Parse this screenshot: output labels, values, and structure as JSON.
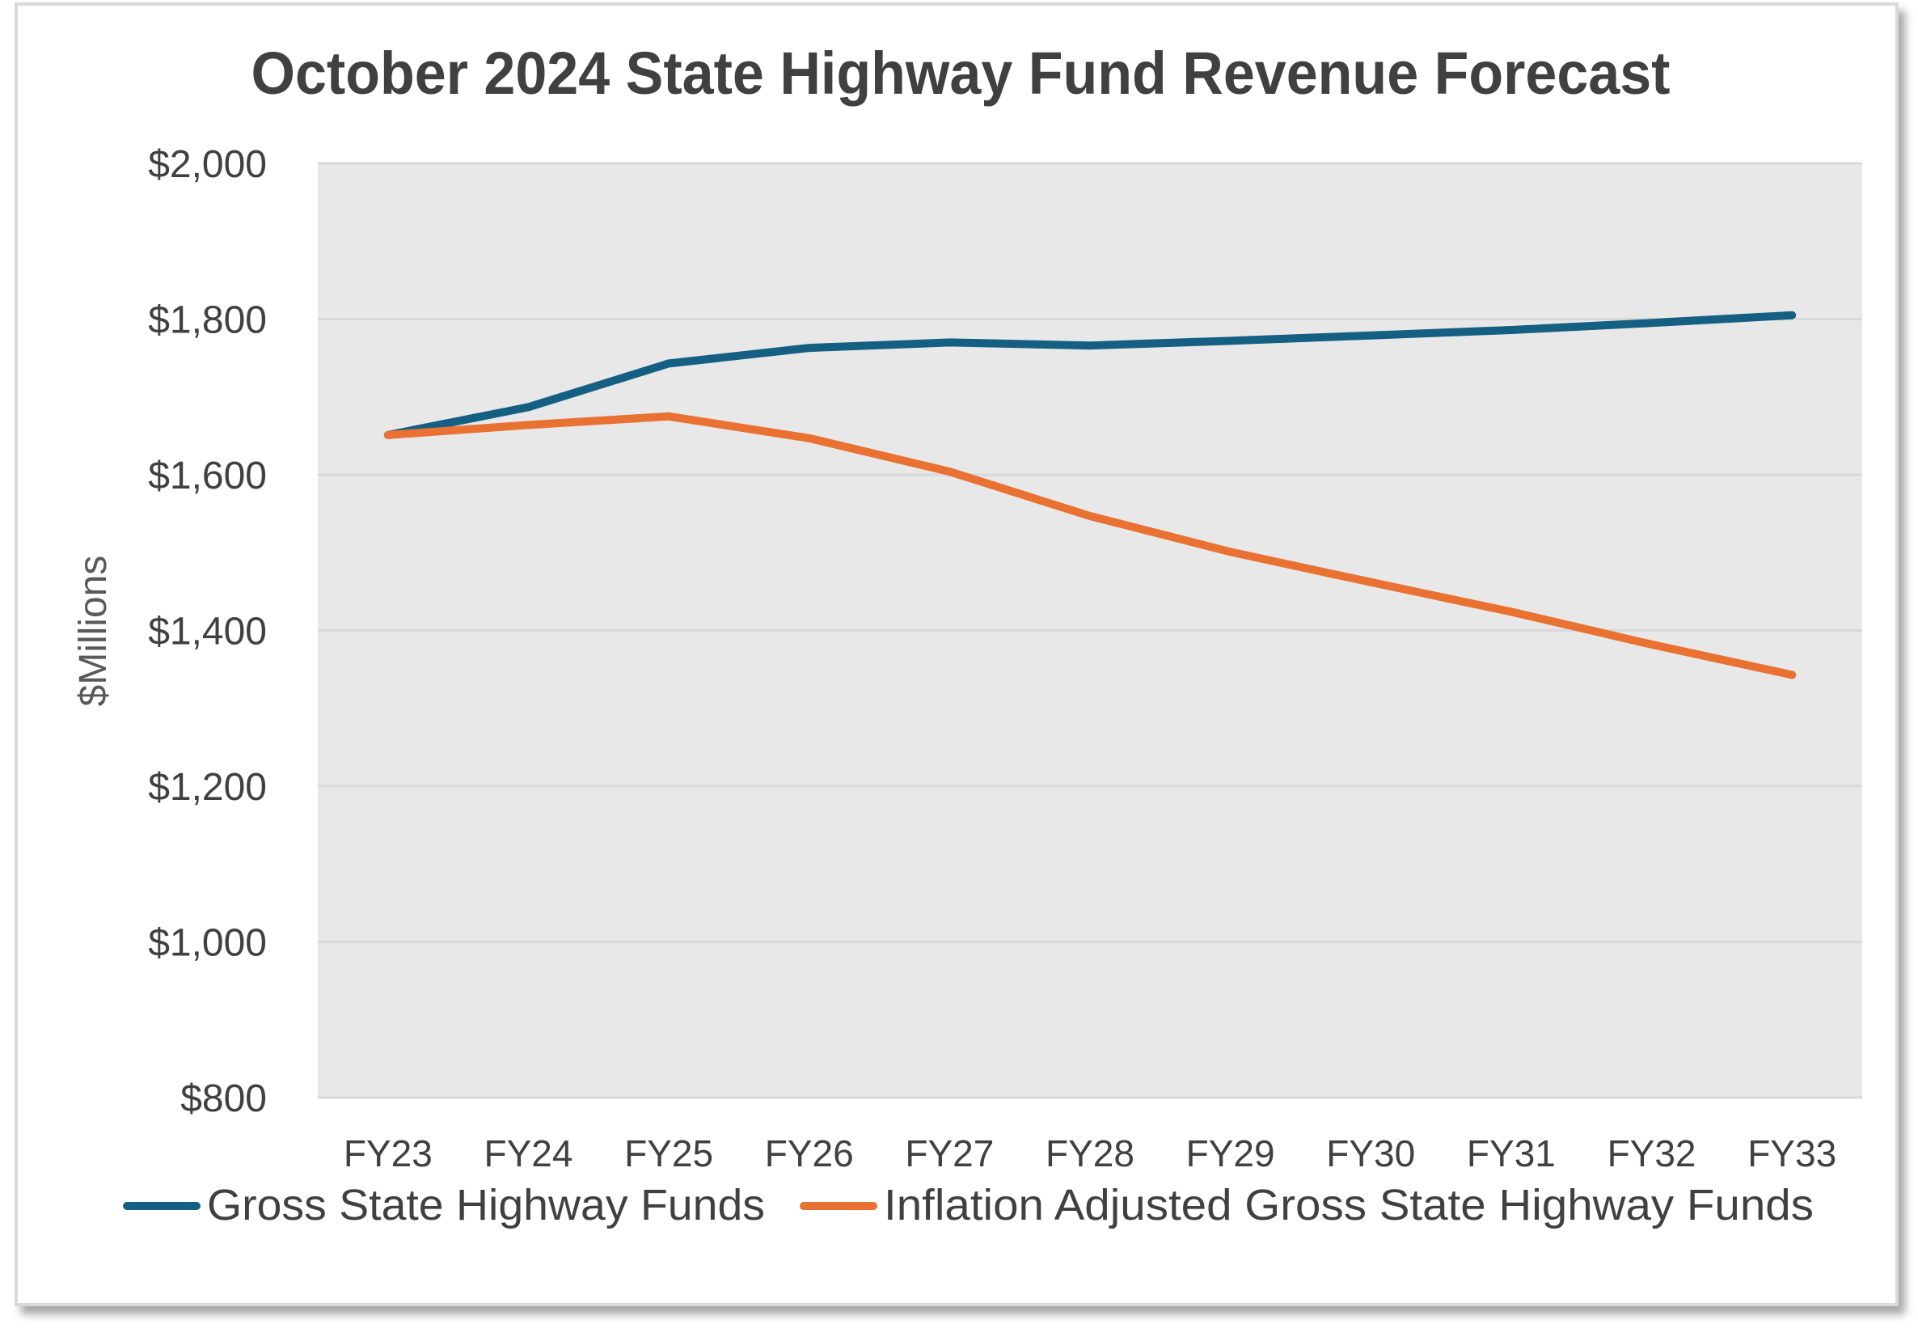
{
  "chart_data": {
    "type": "line",
    "title": "October 2024 State Highway Fund Revenue Forecast",
    "xlabel": "",
    "ylabel": "$Millions",
    "categories": [
      "FY23",
      "FY24",
      "FY25",
      "FY26",
      "FY27",
      "FY28",
      "FY29",
      "FY30",
      "FY31",
      "FY32",
      "FY33"
    ],
    "series": [
      {
        "name": "Gross State Highway Funds",
        "color": "#156082",
        "values": [
          1651,
          1687,
          1743,
          1763,
          1770,
          1766,
          1772,
          1779,
          1786,
          1795,
          1805
        ]
      },
      {
        "name": "Inflation Adjusted Gross State Highway Funds",
        "color": "#E97132",
        "values": [
          1651,
          1664,
          1675,
          1647,
          1604,
          1547,
          1501,
          1462,
          1424,
          1382,
          1343
        ]
      }
    ],
    "ylim": [
      800,
      2000
    ],
    "yticks": [
      800,
      1000,
      1200,
      1400,
      1600,
      1800,
      2000
    ],
    "ytick_labels": [
      "$800",
      "$1,000",
      "$1,200",
      "$1,400",
      "$1,600",
      "$1,800",
      "$2,000"
    ],
    "grid": true,
    "legend_position": "bottom",
    "plot_background": "#E8E8E8",
    "gridline_color": "#D9D9D9"
  }
}
